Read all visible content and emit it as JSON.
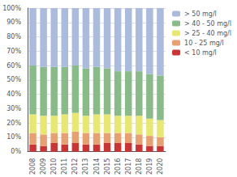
{
  "chart_data": {
    "type": "bar",
    "stacked": true,
    "categories": [
      "2008",
      "2009",
      "2010",
      "2011",
      "2012",
      "2013",
      "2014",
      "2015",
      "2016",
      "2017",
      "2018",
      "2019",
      "2020"
    ],
    "series": [
      {
        "name": "< 10 mg/l",
        "color": "#cc3333",
        "values": [
          5,
          4,
          6,
          5,
          6,
          5,
          5,
          6,
          6,
          6,
          5,
          4,
          4
        ]
      },
      {
        "name": "10 - 25 mg/l",
        "color": "#e8a070",
        "values": [
          8,
          8,
          7,
          8,
          8,
          8,
          8,
          7,
          7,
          7,
          7,
          7,
          6
        ]
      },
      {
        "name": "> 25 - 40 mg/l",
        "color": "#e8e870",
        "values": [
          13,
          13,
          12,
          13,
          13,
          12,
          13,
          13,
          12,
          12,
          13,
          12,
          12
        ]
      },
      {
        "name": "> 40 - 50 mg/l",
        "color": "#88bb88",
        "values": [
          34,
          34,
          34,
          33,
          33,
          33,
          33,
          32,
          31,
          31,
          31,
          31,
          31
        ]
      },
      {
        "name": "> 50 mg/l",
        "color": "#aabbdd",
        "values": [
          40,
          41,
          41,
          41,
          40,
          42,
          41,
          42,
          44,
          44,
          44,
          46,
          47
        ]
      }
    ],
    "ylim": [
      0,
      100
    ],
    "yticks": [
      {
        "value": 0,
        "label": "0%"
      },
      {
        "value": 10,
        "label": "10%"
      },
      {
        "value": 20,
        "label": "20%"
      },
      {
        "value": 30,
        "label": "30%"
      },
      {
        "value": 40,
        "label": "40%"
      },
      {
        "value": 50,
        "label": "50%"
      },
      {
        "value": 60,
        "label": "60%"
      },
      {
        "value": 70,
        "label": "70%"
      },
      {
        "value": 80,
        "label": "80%"
      },
      {
        "value": 90,
        "label": "90%"
      },
      {
        "value": 100,
        "label": "100%"
      }
    ],
    "grid": true,
    "legend": "upper right"
  }
}
